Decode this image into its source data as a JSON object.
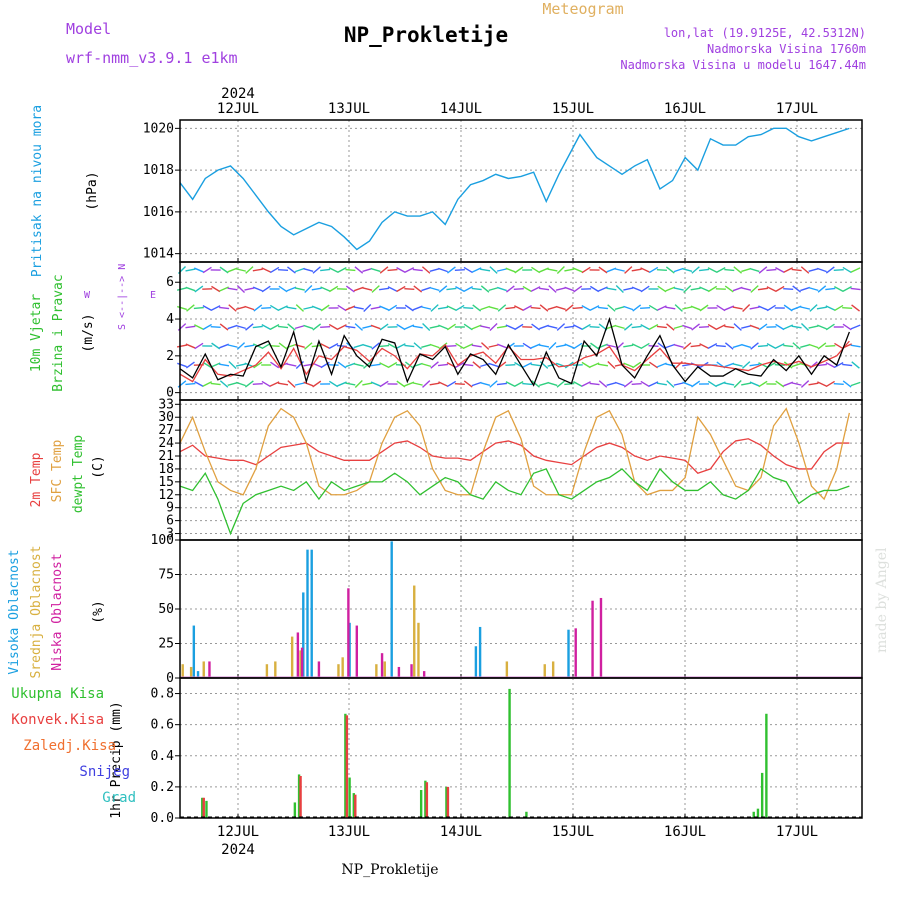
{
  "header": {
    "model_label": "Model",
    "model_name": "wrf-nmm_v3.9.1  e1km",
    "title": "NP_Prokletije",
    "meteogram": "Meteogram",
    "coords": "lon,lat (19.9125E, 42.5312N)",
    "elevation": "Nadmorska Visina 1760m",
    "model_elevation": "Nadmorska Visina u modelu 1647.44m"
  },
  "footer": {
    "station": "NP_Prokletije",
    "credit": "made by Angel"
  },
  "colors": {
    "pressure": "#1a9fe0",
    "temp2m": "#e84040",
    "sfc": "#e0a040",
    "dew": "#30c030",
    "high_cloud": "#1a9fe0",
    "mid_cloud": "#d8b040",
    "low_cloud": "#d020a0",
    "total_rain": "#30c030",
    "conv_rain": "#e84040",
    "frozen": "#f07030",
    "snow": "#4040e0",
    "hail": "#30c0c0",
    "wind_label": "#30c030",
    "wind_compass": "#a040e0",
    "purple": "#a040e0"
  },
  "x_axis": {
    "year": "2024",
    "days": [
      "12JUL",
      "13JUL",
      "14JUL",
      "15JUL",
      "16JUL",
      "17JUL"
    ]
  },
  "chart_data": [
    {
      "type": "line",
      "name": "pressure",
      "title": "",
      "ylabel_lines": [
        "Pritisak na nivou mora",
        "(hPa)"
      ],
      "ylim": [
        1013.6,
        1020.4
      ],
      "yticks": [
        1014,
        1016,
        1018,
        1020
      ],
      "x_hours": [
        0,
        3,
        6,
        9,
        12,
        15,
        18,
        21,
        24,
        27,
        30,
        33,
        36,
        39,
        42,
        45,
        48,
        51,
        54,
        57,
        60,
        63,
        66,
        69,
        72,
        75,
        78,
        81,
        84,
        87,
        90,
        95,
        99,
        102,
        105,
        108,
        111,
        114,
        117,
        120,
        123,
        126,
        129,
        132,
        135,
        138,
        141,
        144,
        147,
        150,
        153,
        156,
        159
      ],
      "series": [
        {
          "values": [
            1017.4,
            1016.6,
            1017.6,
            1018.0,
            1018.2,
            1017.6,
            1016.8,
            1016.0,
            1015.3,
            1014.9,
            1015.2,
            1015.5,
            1015.3,
            1014.8,
            1014.2,
            1014.6,
            1015.5,
            1016.0,
            1015.8,
            1015.8,
            1016.0,
            1015.4,
            1016.6,
            1017.3,
            1017.5,
            1017.8,
            1017.6,
            1017.7,
            1017.9,
            1016.5,
            1017.8,
            1019.7,
            1018.6,
            1018.2,
            1017.8,
            1018.2,
            1018.5,
            1017.1,
            1017.5,
            1018.6,
            1018.0,
            1019.5,
            1019.2,
            1019.2,
            1019.6,
            1019.7,
            1020.0,
            1020.0,
            1019.6,
            1019.4,
            1019.6,
            1019.8,
            1020.0
          ]
        }
      ]
    },
    {
      "type": "line",
      "name": "wind",
      "ylabel_lines": [
        "10m Vjetar",
        "Brzina i Pravac",
        "(m/s)"
      ],
      "compass": [
        "N",
        "<--|-->",
        "E",
        "W",
        "-->",
        "S"
      ],
      "ylim": [
        -0.4,
        7.1
      ],
      "yticks": [
        0,
        2,
        4,
        6
      ],
      "x_hours": [
        0,
        3,
        6,
        9,
        12,
        15,
        18,
        21,
        24,
        27,
        30,
        33,
        36,
        39,
        42,
        45,
        48,
        51,
        54,
        57,
        60,
        63,
        66,
        69,
        72,
        75,
        78,
        81,
        84,
        87,
        90,
        93,
        96,
        99,
        102,
        105,
        108,
        111,
        114,
        117,
        120,
        123,
        126,
        129,
        132,
        135,
        138,
        141,
        144,
        147,
        150,
        153,
        156,
        159
      ],
      "series": [
        {
          "values": [
            1.0,
            0.6,
            1.8,
            1.0,
            0.9,
            1.2,
            1.5,
            2.2,
            1.3,
            2.4,
            1.0,
            2.0,
            1.8,
            2.5,
            2.3,
            1.7,
            2.4,
            2.0,
            1.3,
            2.1,
            2.0,
            2.6,
            1.5,
            2.0,
            2.2,
            1.6,
            2.5,
            1.8,
            1.8,
            1.9,
            1.4,
            1.5,
            1.9,
            2.1,
            2.5,
            1.5,
            1.2,
            1.8,
            2.4,
            1.6,
            1.6,
            1.5,
            1.5,
            1.4,
            1.3,
            1.2,
            1.5,
            1.7,
            1.5,
            1.7,
            1.4,
            1.7,
            2.0,
            2.8
          ],
          "color": "#e84040"
        },
        {
          "values": [
            1.3,
            0.8,
            2.1,
            0.7,
            1.0,
            0.9,
            2.5,
            2.8,
            1.4,
            3.3,
            0.6,
            2.8,
            1.0,
            3.1,
            2.0,
            1.4,
            2.9,
            2.7,
            0.6,
            2.1,
            1.8,
            2.5,
            1.0,
            2.1,
            1.8,
            1.0,
            2.6,
            1.5,
            0.4,
            2.2,
            0.8,
            0.5,
            2.8,
            2.0,
            4.0,
            1.5,
            0.8,
            2.0,
            3.1,
            1.5,
            0.6,
            1.4,
            0.9,
            0.9,
            1.3,
            1.0,
            0.9,
            1.8,
            1.2,
            2.0,
            1.0,
            2.0,
            1.5,
            3.3
          ],
          "color": "#000000"
        }
      ]
    },
    {
      "type": "line",
      "name": "temperature",
      "ylabel_lines": [
        "2m Temp",
        "SFC Temp",
        "dewpt Temp",
        "(C)"
      ],
      "ylim": [
        1.5,
        34
      ],
      "yticks": [
        3,
        6,
        9,
        12,
        15,
        18,
        21,
        24,
        27,
        30,
        33
      ],
      "x_hours": [
        0,
        3,
        6,
        9,
        12,
        15,
        18,
        21,
        24,
        27,
        30,
        33,
        36,
        39,
        42,
        45,
        48,
        51,
        54,
        57,
        60,
        63,
        66,
        69,
        72,
        75,
        78,
        81,
        84,
        87,
        90,
        93,
        96,
        99,
        102,
        105,
        108,
        111,
        114,
        117,
        120,
        123,
        126,
        129,
        132,
        135,
        138,
        141,
        144,
        147,
        150,
        153,
        156,
        159
      ],
      "series": [
        {
          "name": "2m",
          "values": [
            22,
            23.5,
            21,
            20.5,
            20,
            20,
            19,
            21,
            23,
            23.5,
            24,
            22,
            21,
            20,
            20,
            20,
            22,
            24,
            24.5,
            23,
            21,
            20.5,
            20.5,
            20,
            22,
            24,
            24.5,
            23.5,
            21,
            20,
            19.5,
            19,
            21,
            23,
            24,
            23,
            21,
            20,
            21,
            20.5,
            20,
            17,
            18,
            22,
            24.5,
            25,
            23.5,
            21,
            19,
            18,
            18,
            22,
            24,
            24
          ],
          "color": "#e84040"
        },
        {
          "name": "sfc",
          "values": [
            24,
            30,
            22,
            15,
            13,
            12,
            18,
            28,
            32,
            30,
            24,
            14,
            12,
            12,
            13,
            15,
            24,
            30,
            31.5,
            28,
            18,
            13,
            12,
            12,
            22,
            30,
            31.5,
            25,
            14,
            12,
            12,
            12,
            22,
            30,
            31.5,
            26,
            15,
            12,
            13,
            13,
            16,
            30,
            26,
            20,
            14,
            13,
            16,
            28,
            32,
            24,
            14,
            11,
            18,
            31
          ],
          "color": "#e0a040"
        },
        {
          "name": "dew",
          "values": [
            14,
            13,
            17,
            11,
            3,
            10,
            12,
            13,
            14,
            13,
            15,
            11,
            15,
            13,
            14,
            15,
            15,
            17,
            15,
            12,
            14,
            16,
            15,
            12,
            11,
            15,
            13,
            12,
            17,
            18,
            12,
            11,
            13,
            15,
            16,
            18,
            15,
            13,
            18,
            15,
            13,
            13,
            15,
            12,
            11,
            13,
            18,
            16,
            15,
            10,
            12,
            13,
            13,
            14
          ],
          "color": "#30c030"
        }
      ]
    },
    {
      "type": "bar",
      "name": "cloud",
      "ylabel_lines": [
        "Visoka Oblacnost",
        "Srednja Oblacnost",
        "Niska Oblacnost",
        "(%)"
      ],
      "ylim": [
        0,
        100
      ],
      "yticks": [
        0,
        25,
        50,
        75,
        100
      ],
      "series": [
        {
          "name": "high",
          "color": "#1a9fe0",
          "x_hours": [
            3,
            4,
            29,
            30,
            31,
            40,
            50,
            70,
            71,
            92
          ],
          "values": [
            38,
            5,
            62,
            93,
            93,
            40,
            99,
            23,
            37,
            35
          ]
        },
        {
          "name": "mid",
          "color": "#d8b040",
          "x_hours": [
            0,
            2,
            5,
            20,
            22,
            26,
            28,
            37,
            38,
            46,
            48,
            55,
            56,
            77,
            86,
            88
          ],
          "values": [
            10,
            8,
            12,
            10,
            12,
            30,
            20,
            10,
            15,
            10,
            12,
            67,
            40,
            12,
            10,
            12
          ]
        },
        {
          "name": "low",
          "color": "#d020a0",
          "x_hours": [
            6,
            27,
            28,
            32,
            39,
            41,
            47,
            51,
            54,
            57,
            93,
            97,
            99
          ],
          "values": [
            12,
            33,
            22,
            12,
            65,
            38,
            18,
            8,
            10,
            5,
            36,
            56,
            58
          ]
        }
      ]
    },
    {
      "type": "bar",
      "name": "precip",
      "ylabel_lines": [
        "1hr Precip (mm)"
      ],
      "legend": [
        "Ukupna Kisa",
        "Konvek.Kisa",
        "Zaledj.Kisa",
        "Snijeg",
        "Grad"
      ],
      "ylim": [
        0,
        0.9
      ],
      "yticks": [
        0,
        0.2,
        0.4,
        0.6,
        0.8
      ],
      "series": [
        {
          "name": "total",
          "color": "#30c030",
          "x_hours": [
            5,
            6,
            27,
            28,
            39,
            40,
            41,
            57,
            58,
            63,
            78,
            82,
            136,
            137,
            138,
            139
          ],
          "values": [
            0.13,
            0.11,
            0.1,
            0.28,
            0.67,
            0.26,
            0.16,
            0.18,
            0.24,
            0.2,
            0.83,
            0.04,
            0.04,
            0.06,
            0.29,
            0.67
          ]
        },
        {
          "name": "conv",
          "color": "#e84040",
          "x_hours": [
            5,
            28,
            39,
            41,
            58,
            63
          ],
          "values": [
            0.13,
            0.27,
            0.66,
            0.15,
            0.23,
            0.2
          ]
        }
      ]
    }
  ]
}
